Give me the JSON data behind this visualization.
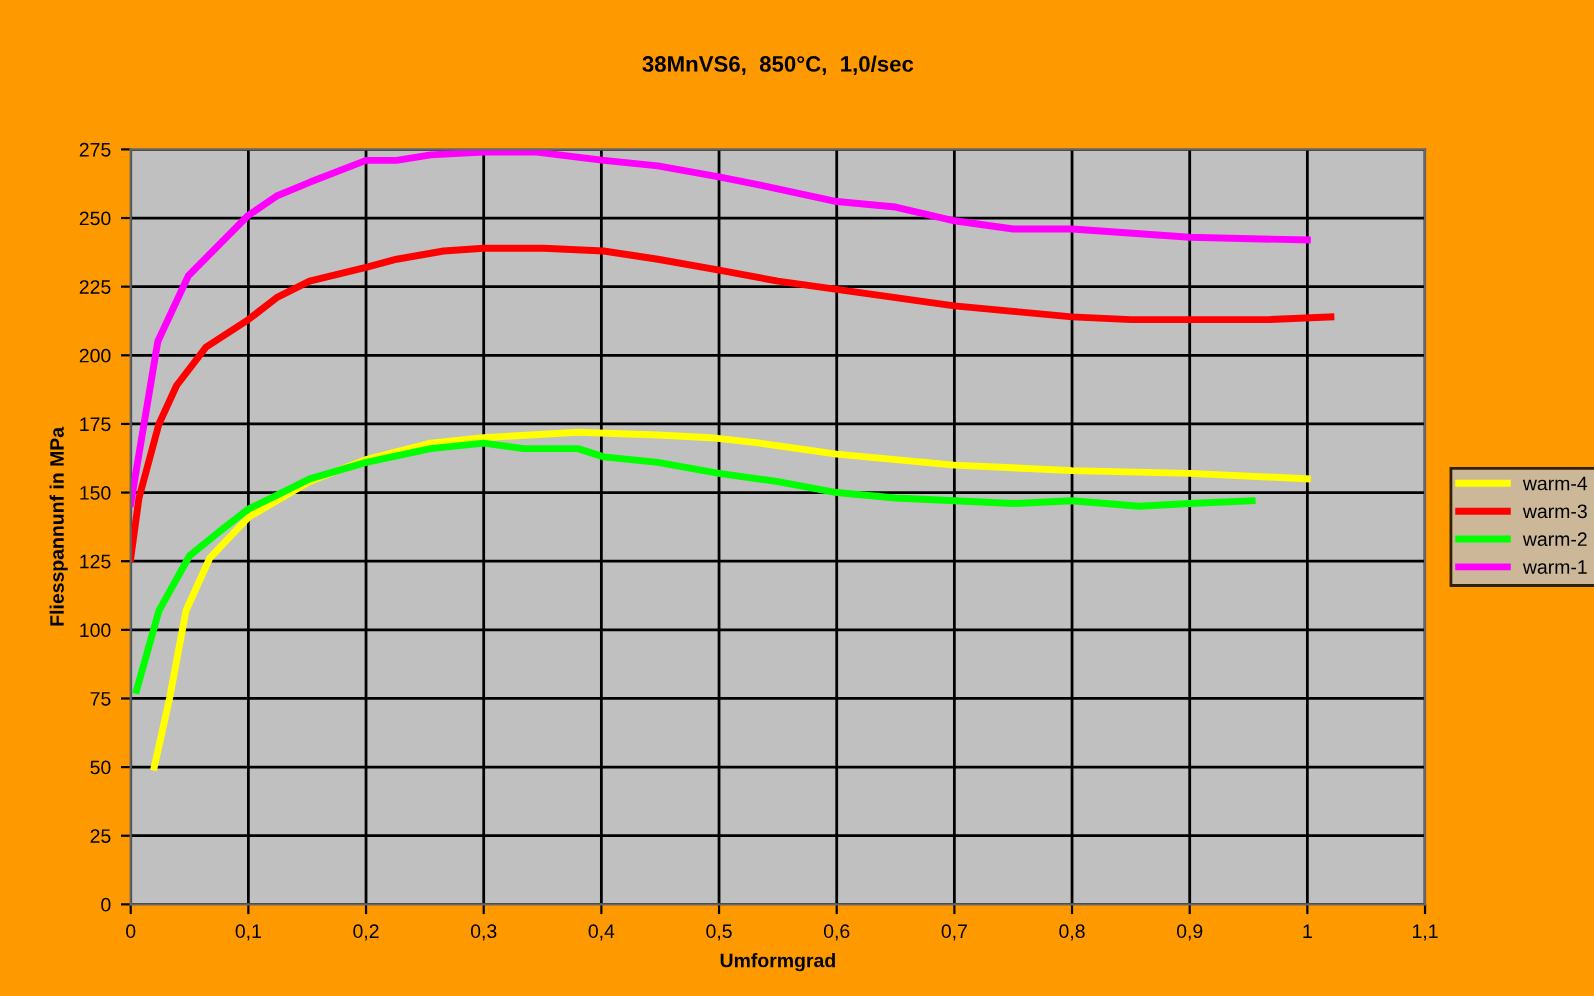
{
  "chart_data": {
    "type": "line",
    "title": "38MnVS6,  850°C,  1,0/sec",
    "xlabel": "Umformgrad",
    "ylabel": "Fliesspannunf in MPa",
    "xlim": [
      0,
      1.1
    ],
    "xticks": [
      0,
      {
        "value": 0.1,
        "label": "0,1"
      },
      {
        "value": 0.2,
        "label": "0,2"
      },
      {
        "value": 0.3,
        "label": "0,3"
      },
      {
        "value": 0.4,
        "label": "0,4"
      },
      {
        "value": 0.5,
        "label": "0,5"
      },
      {
        "value": 0.6,
        "label": "0,6"
      },
      {
        "value": 0.7,
        "label": "0,7"
      },
      {
        "value": 0.8,
        "label": "0,8"
      },
      {
        "value": 0.9,
        "label": "0,9"
      },
      1,
      {
        "value": 1.1,
        "label": "1,1"
      }
    ],
    "ylim": [
      0,
      275
    ],
    "yticks": [
      0,
      25,
      50,
      75,
      100,
      125,
      150,
      175,
      200,
      225,
      250,
      275
    ],
    "grid": true,
    "legend": "right",
    "marker": "none",
    "line_style": "solid",
    "series": [
      {
        "name": "warm-4",
        "color": "#ffff00",
        "x": [
          0.02,
          0.033,
          0.047,
          0.067,
          0.1,
          0.152,
          0.2,
          0.255,
          0.3,
          0.38,
          0.448,
          0.493,
          0.535,
          0.6,
          0.7,
          0.8,
          0.9,
          1.0
        ],
        "values": [
          50,
          75,
          107,
          126,
          141,
          154,
          162,
          168,
          170,
          172,
          171,
          170,
          168,
          164,
          160,
          158,
          157,
          155
        ]
      },
      {
        "name": "warm-3",
        "color": "#ff0000",
        "x": [
          0,
          0.007,
          0.024,
          0.039,
          0.064,
          0.1,
          0.124,
          0.152,
          0.2,
          0.226,
          0.266,
          0.3,
          0.351,
          0.402,
          0.448,
          0.5,
          0.55,
          0.6,
          0.65,
          0.7,
          0.75,
          0.8,
          0.85,
          0.9,
          0.967,
          1.02
        ],
        "values": [
          126,
          148,
          175,
          189,
          203,
          213,
          221,
          227,
          232,
          235,
          238,
          239,
          239,
          238,
          235,
          231,
          227,
          224,
          221,
          218,
          216,
          214,
          213,
          213,
          213,
          214
        ]
      },
      {
        "name": "warm-2",
        "color": "#00ff00",
        "x": [
          0.005,
          0.024,
          0.05,
          0.076,
          0.1,
          0.124,
          0.152,
          0.2,
          0.255,
          0.3,
          0.334,
          0.38,
          0.402,
          0.448,
          0.5,
          0.55,
          0.6,
          0.65,
          0.75,
          0.8,
          0.857,
          0.9,
          0.953
        ],
        "values": [
          78,
          107,
          127,
          136,
          144,
          149,
          155,
          161,
          166,
          168,
          166,
          166,
          163,
          161,
          157,
          154,
          150,
          148,
          146,
          147,
          145,
          146,
          147
        ]
      },
      {
        "name": "warm-1",
        "color": "#ff00ff",
        "x": [
          0,
          0.023,
          0.049,
          0.1,
          0.124,
          0.152,
          0.2,
          0.226,
          0.255,
          0.3,
          0.345,
          0.402,
          0.448,
          0.5,
          0.535,
          0.6,
          0.65,
          0.7,
          0.75,
          0.8,
          0.9,
          1.0
        ],
        "values": [
          146,
          205,
          229,
          251,
          258,
          263,
          271,
          271,
          273,
          274,
          274,
          271,
          269,
          265,
          262,
          256,
          254,
          249,
          246,
          246,
          243,
          242
        ]
      }
    ]
  }
}
